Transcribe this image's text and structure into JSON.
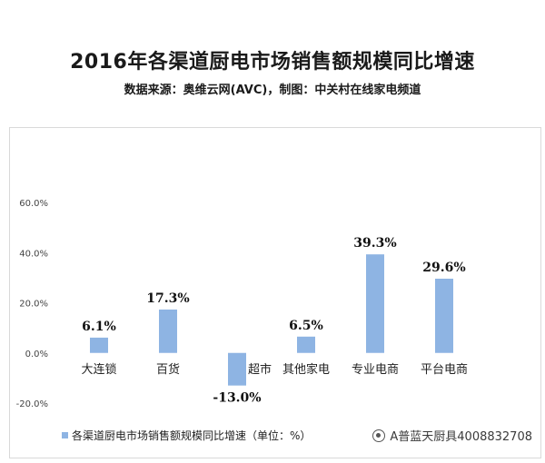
{
  "header": {
    "title": "2016年各渠道厨电市场销售额规模同比增速",
    "subtitle": "数据来源：奥维云网(AVC)，制图：中关村在线家电频道"
  },
  "chart_data": {
    "type": "bar",
    "categories": [
      "大连锁",
      "百货",
      "超市",
      "其他家电",
      "专业电商",
      "平台电商"
    ],
    "series": [
      {
        "name": "各渠道厨电市场销售额规模同比增速（单位：%）",
        "values": [
          6.1,
          17.3,
          -13.0,
          6.5,
          39.3,
          29.6
        ],
        "data_labels": [
          "6.1%",
          "17.3%",
          "-13.0%",
          "6.5%",
          "39.3%",
          "29.6%"
        ],
        "color": "#8eb4e3"
      }
    ],
    "yticks": [
      "60.0%",
      "40.0%",
      "20.0%",
      "0.0%",
      "-20.0%"
    ],
    "ylim": [
      -20,
      60
    ],
    "grid": false,
    "legend_position": "bottom-left"
  },
  "watermark": {
    "text": "A普蓝天厨具4008832708"
  }
}
